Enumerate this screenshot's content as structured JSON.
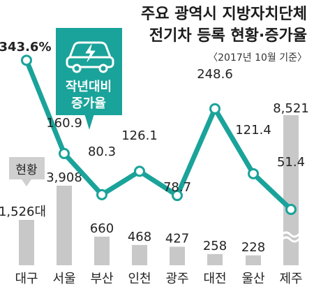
{
  "title_line1": "주요 광역시 지방자치단체",
  "title_line2": "전기차 등록 현황·증가율",
  "subtitle": "〈2017년 10월 기준〉",
  "legend": {
    "line_label_1": "작년대비",
    "line_label_2": "증가율",
    "bar_label": "현황",
    "icon": "electric-car-icon"
  },
  "colors": {
    "line": "#1aa39a",
    "bar": "#c8c8c8",
    "text": "#222222"
  },
  "chart_data": {
    "type": "bar",
    "categories": [
      "대구",
      "서울",
      "부산",
      "인천",
      "광주",
      "대전",
      "울산",
      "제주"
    ],
    "series": [
      {
        "name": "현황",
        "type": "bar",
        "values": [
          1526,
          3908,
          660,
          468,
          427,
          258,
          228,
          8521
        ],
        "labels": [
          "1,526대",
          "3,908",
          "660",
          "468",
          "427",
          "258",
          "228",
          "8,521"
        ]
      },
      {
        "name": "작년대비 증가율",
        "type": "line",
        "values": [
          343.6,
          160.9,
          80.3,
          126.1,
          78.7,
          248.6,
          121.4,
          51.4
        ],
        "labels": [
          "343.6%",
          "160.9",
          "80.3",
          "126.1",
          "78.7",
          "248.6",
          "121.4",
          "51.4"
        ]
      }
    ],
    "axis_break": "제주"
  }
}
